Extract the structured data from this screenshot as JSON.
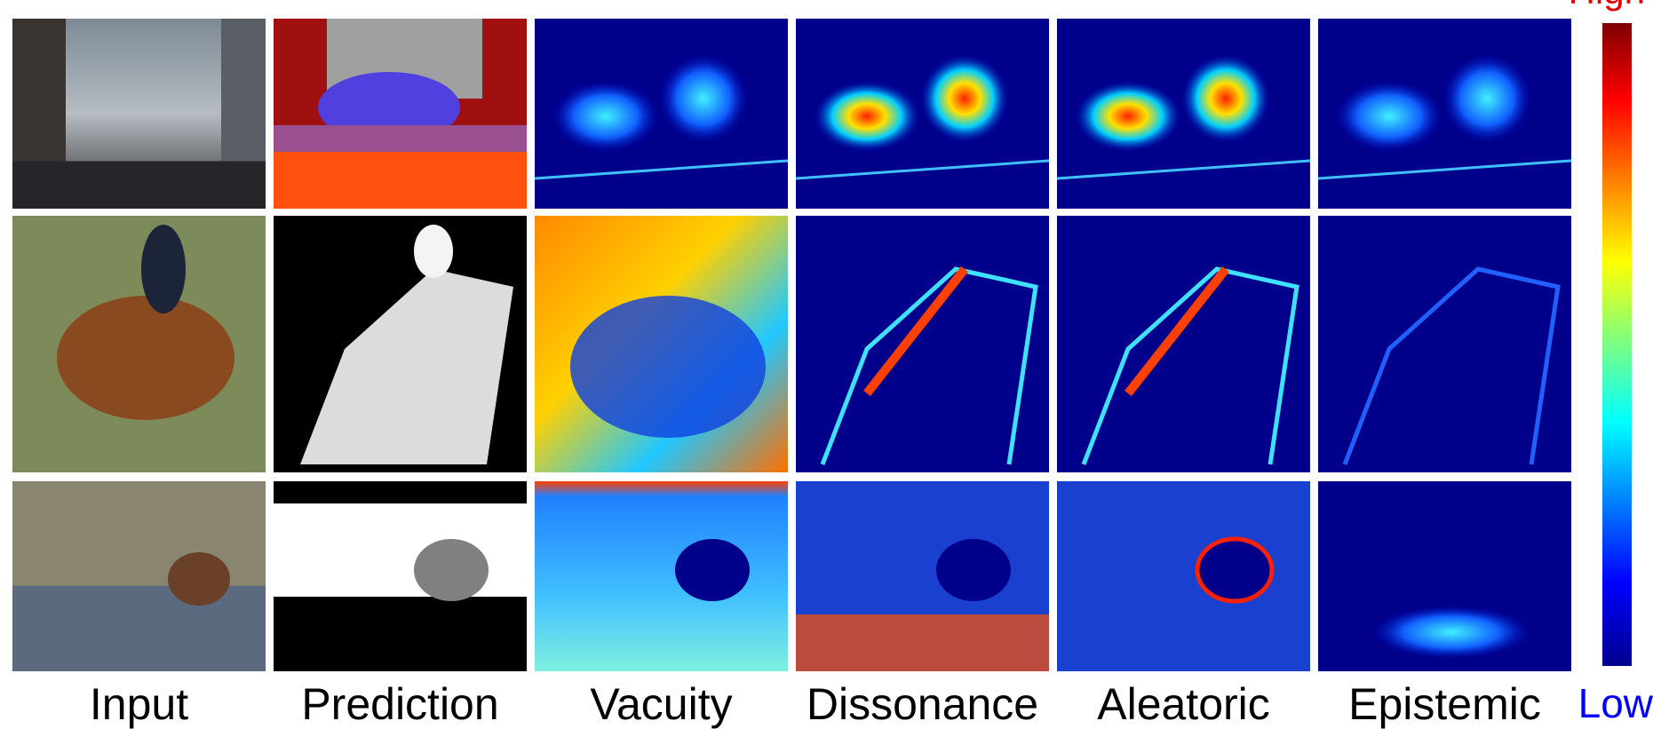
{
  "columns": [
    "Input",
    "Prediction",
    "Vacuity",
    "Dissonance",
    "Aleatoric",
    "Epistemic"
  ],
  "colorbar": {
    "high": "High",
    "low": "Low"
  }
}
